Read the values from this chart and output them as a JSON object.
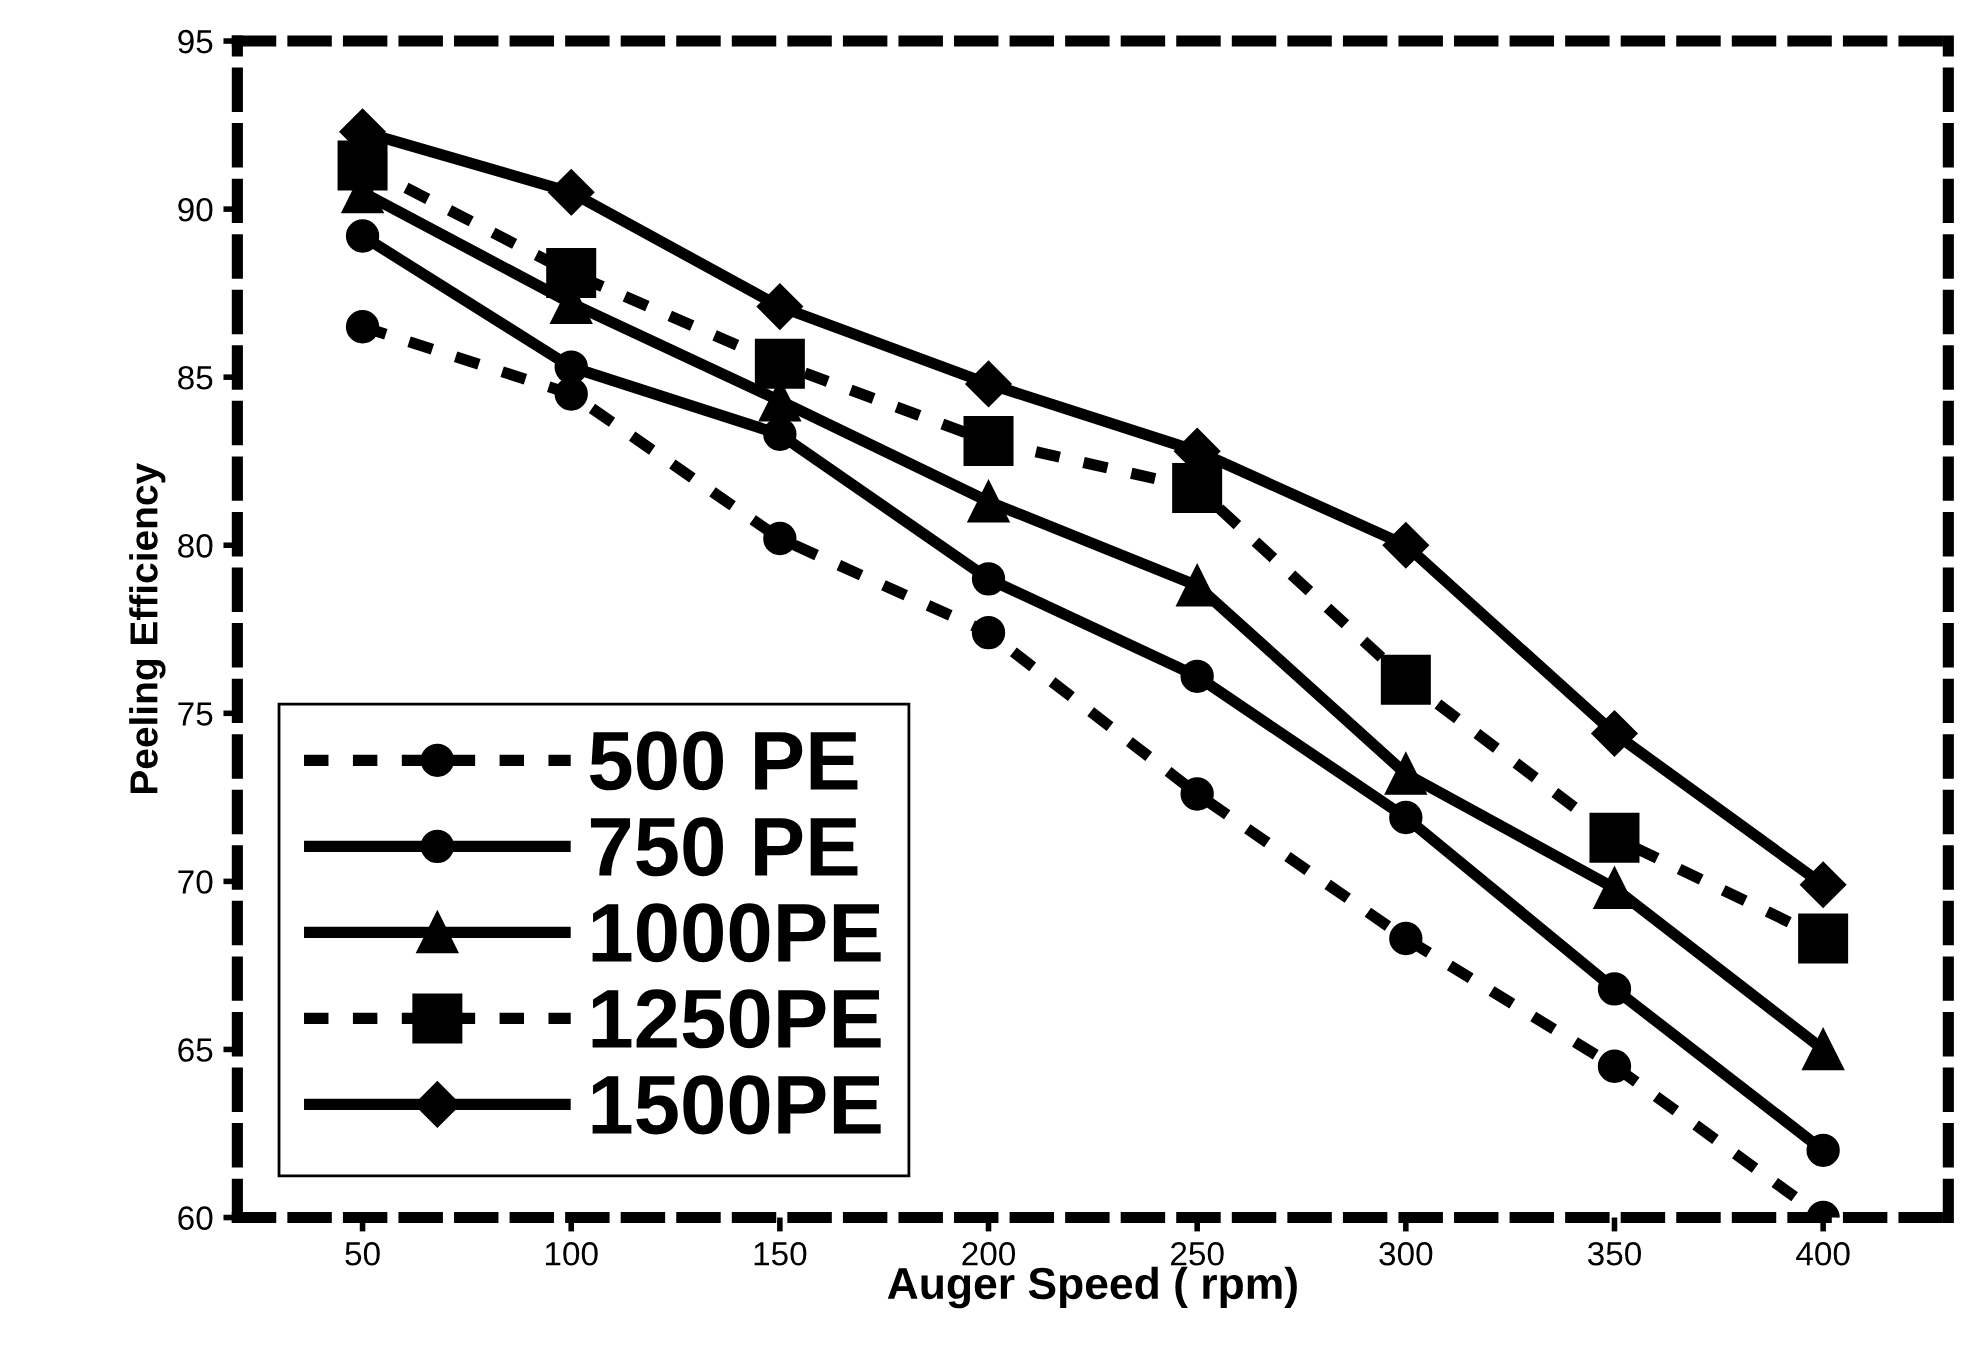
{
  "chart_data": {
    "type": "line",
    "xlabel": "Auger Speed ( rpm)",
    "ylabel": "Peeling Efficiency",
    "categories": [
      "50",
      "100",
      "150",
      "200",
      "250",
      "300",
      "350",
      "400"
    ],
    "series": [
      {
        "name": "500 PE",
        "color": "#000000",
        "marker": "circle",
        "line_style": "dashed",
        "values": [
          86.5,
          84.5,
          80.2,
          77.4,
          72.6,
          68.3,
          64.5,
          60
        ]
      },
      {
        "name": "750 PE",
        "color": "#000000",
        "marker": "circle",
        "line_style": "solid",
        "values": [
          89.2,
          85.3,
          83.3,
          79,
          76.1,
          71.9,
          66.8,
          62
        ]
      },
      {
        "name": "1000PE",
        "color": "#000000",
        "marker": "triangle",
        "line_style": "solid",
        "values": [
          90.5,
          87.2,
          84.3,
          81.3,
          78.8,
          73.2,
          69.8,
          65
        ]
      },
      {
        "name": "1250PE",
        "color": "#000000",
        "marker": "square",
        "line_style": "dashed",
        "values": [
          91.3,
          88.1,
          85.4,
          83.1,
          81.7,
          76,
          71.3,
          68.3
        ]
      },
      {
        "name": "1500PE",
        "color": "#000000",
        "marker": "diamond",
        "line_style": "solid",
        "values": [
          92.3,
          90.5,
          87.1,
          84.8,
          82.8,
          80,
          74.4,
          69.9
        ]
      }
    ],
    "ylim": [
      60,
      95
    ],
    "yticks": [
      60,
      65,
      70,
      75,
      80,
      85,
      90,
      95
    ],
    "grid": false,
    "legend": "bottom left"
  }
}
